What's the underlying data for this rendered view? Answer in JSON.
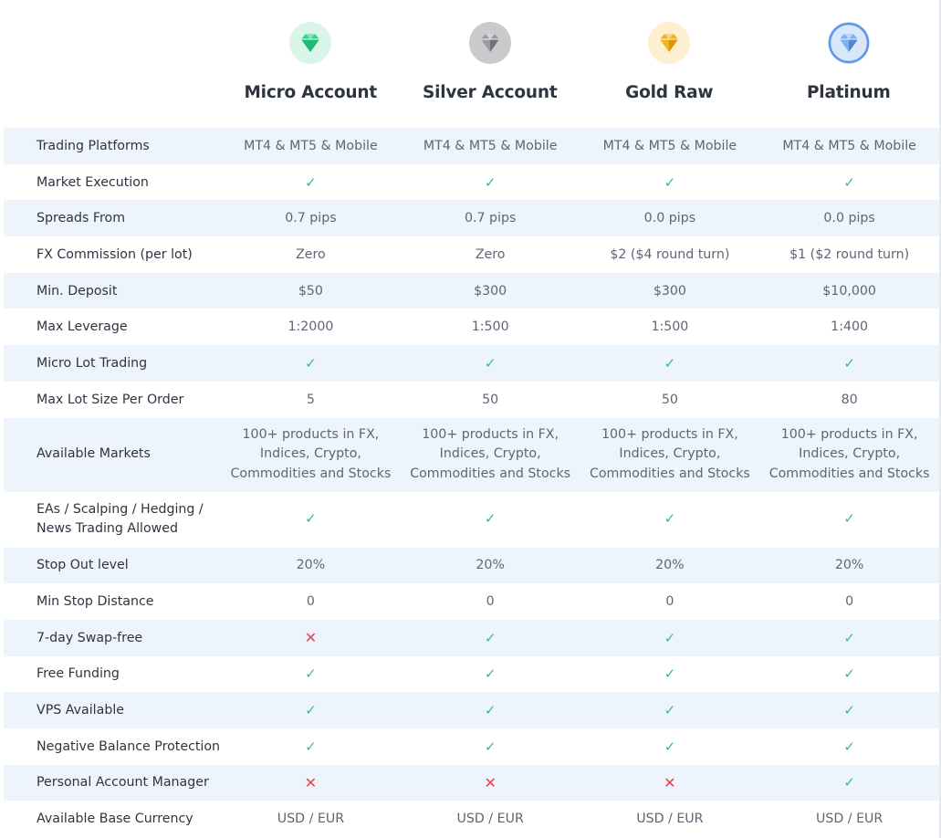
{
  "plans": [
    {
      "name": "Micro Account",
      "icon": "green-diamond-icon",
      "color": "#2fd98a",
      "bg": "#d9f5e8"
    },
    {
      "name": "Silver Account",
      "icon": "silver-diamond-icon",
      "color": "#9a9ca0",
      "bg": "#e4e5e7"
    },
    {
      "name": "Gold Raw",
      "icon": "gold-diamond-icon",
      "color": "#f2b41c",
      "bg": "#fdefcf"
    },
    {
      "name": "Platinum",
      "icon": "platinum-diamond-icon",
      "color": "#5e97e8",
      "bg": "#d9e7fb"
    }
  ],
  "rows": [
    {
      "label": "Trading Platforms",
      "values": [
        "MT4 & MT5 & Mobile",
        "MT4 & MT5 & Mobile",
        "MT4 & MT5 & Mobile",
        "MT4 & MT5 & Mobile"
      ]
    },
    {
      "label": "Market Execution",
      "values": [
        "✓",
        "✓",
        "✓",
        "✓"
      ]
    },
    {
      "label": "Spreads From",
      "values": [
        "0.7 pips",
        "0.7 pips",
        "0.0 pips",
        "0.0 pips"
      ]
    },
    {
      "label": "FX Commission (per lot)",
      "values": [
        "Zero",
        "Zero",
        "$2 ($4 round turn)",
        "$1 ($2 round turn)"
      ]
    },
    {
      "label": "Min. Deposit",
      "values": [
        "$50",
        "$300",
        "$300",
        "$10,000"
      ]
    },
    {
      "label": "Max Leverage",
      "values": [
        "1:2000",
        "1:500",
        "1:500",
        "1:400"
      ]
    },
    {
      "label": "Micro Lot Trading",
      "values": [
        "✓",
        "✓",
        "✓",
        "✓"
      ]
    },
    {
      "label": "Max Lot Size Per Order",
      "values": [
        "5",
        "50",
        "50",
        "80"
      ]
    },
    {
      "label": "Available Markets",
      "values": [
        "100+ products in FX, Indices, Crypto, Commodities and Stocks",
        "100+ products in FX, Indices, Crypto, Commodities and Stocks",
        "100+ products in FX, Indices, Crypto, Commodities and Stocks",
        "100+ products in FX, Indices, Crypto, Commodities and Stocks"
      ]
    },
    {
      "label": "EAs / Scalping / Hedging / News Trading Allowed",
      "values": [
        "✓",
        "✓",
        "✓",
        "✓"
      ]
    },
    {
      "label": "Stop Out level",
      "values": [
        "20%",
        "20%",
        "20%",
        "20%"
      ]
    },
    {
      "label": "Min Stop Distance",
      "values": [
        "0",
        "0",
        "0",
        "0"
      ]
    },
    {
      "label": "7-day Swap-free",
      "values": [
        "✕",
        "✓",
        "✓",
        "✓"
      ]
    },
    {
      "label": "Free Funding",
      "values": [
        "✓",
        "✓",
        "✓",
        "✓"
      ]
    },
    {
      "label": "VPS Available",
      "values": [
        "✓",
        "✓",
        "✓",
        "✓"
      ]
    },
    {
      "label": "Negative Balance Protection",
      "values": [
        "✓",
        "✓",
        "✓",
        "✓"
      ]
    },
    {
      "label": "Personal Account Manager",
      "values": [
        "✕",
        "✕",
        "✕",
        "✓"
      ]
    },
    {
      "label": "Available Base Currency",
      "values": [
        "USD / EUR",
        "USD / EUR",
        "USD / EUR",
        "USD / EUR"
      ]
    }
  ]
}
